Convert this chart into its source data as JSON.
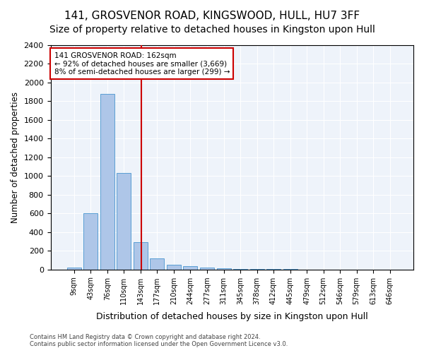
{
  "title1": "141, GROSVENOR ROAD, KINGSWOOD, HULL, HU7 3FF",
  "title2": "Size of property relative to detached houses in Kingston upon Hull",
  "xlabel": "Distribution of detached houses by size in Kingston upon Hull",
  "ylabel": "Number of detached properties",
  "footnote": "Contains HM Land Registry data © Crown copyright and database right 2024.\nContains public sector information licensed under the Open Government Licence v3.0.",
  "bin_labels": [
    "9sqm",
    "43sqm",
    "76sqm",
    "110sqm",
    "143sqm",
    "177sqm",
    "210sqm",
    "244sqm",
    "277sqm",
    "311sqm",
    "345sqm",
    "378sqm",
    "412sqm",
    "445sqm",
    "479sqm",
    "512sqm",
    "546sqm",
    "579sqm",
    "613sqm",
    "646sqm"
  ],
  "bar_values": [
    20,
    600,
    1880,
    1030,
    290,
    120,
    50,
    35,
    20,
    10,
    5,
    5,
    3,
    2,
    1,
    1,
    1,
    0,
    0,
    0
  ],
  "bar_color": "#aec6e8",
  "bar_edge_color": "#5a9fd4",
  "bin_edges": [
    9,
    43,
    76,
    110,
    143,
    177,
    210,
    244,
    277,
    311,
    345,
    378,
    412,
    445,
    479,
    512,
    546,
    579,
    613,
    646,
    680
  ],
  "property_sqm": 162,
  "annotation_text": "141 GROSVENOR ROAD: 162sqm\n← 92% of detached houses are smaller (3,669)\n8% of semi-detached houses are larger (299) →",
  "vline_color": "#cc0000",
  "annotation_box_color": "#cc0000",
  "ylim": [
    0,
    2400
  ],
  "yticks": [
    0,
    200,
    400,
    600,
    800,
    1000,
    1200,
    1400,
    1600,
    1800,
    2000,
    2200,
    2400
  ],
  "bg_color": "#eef3fa",
  "title_fontsize": 11,
  "subtitle_fontsize": 10
}
